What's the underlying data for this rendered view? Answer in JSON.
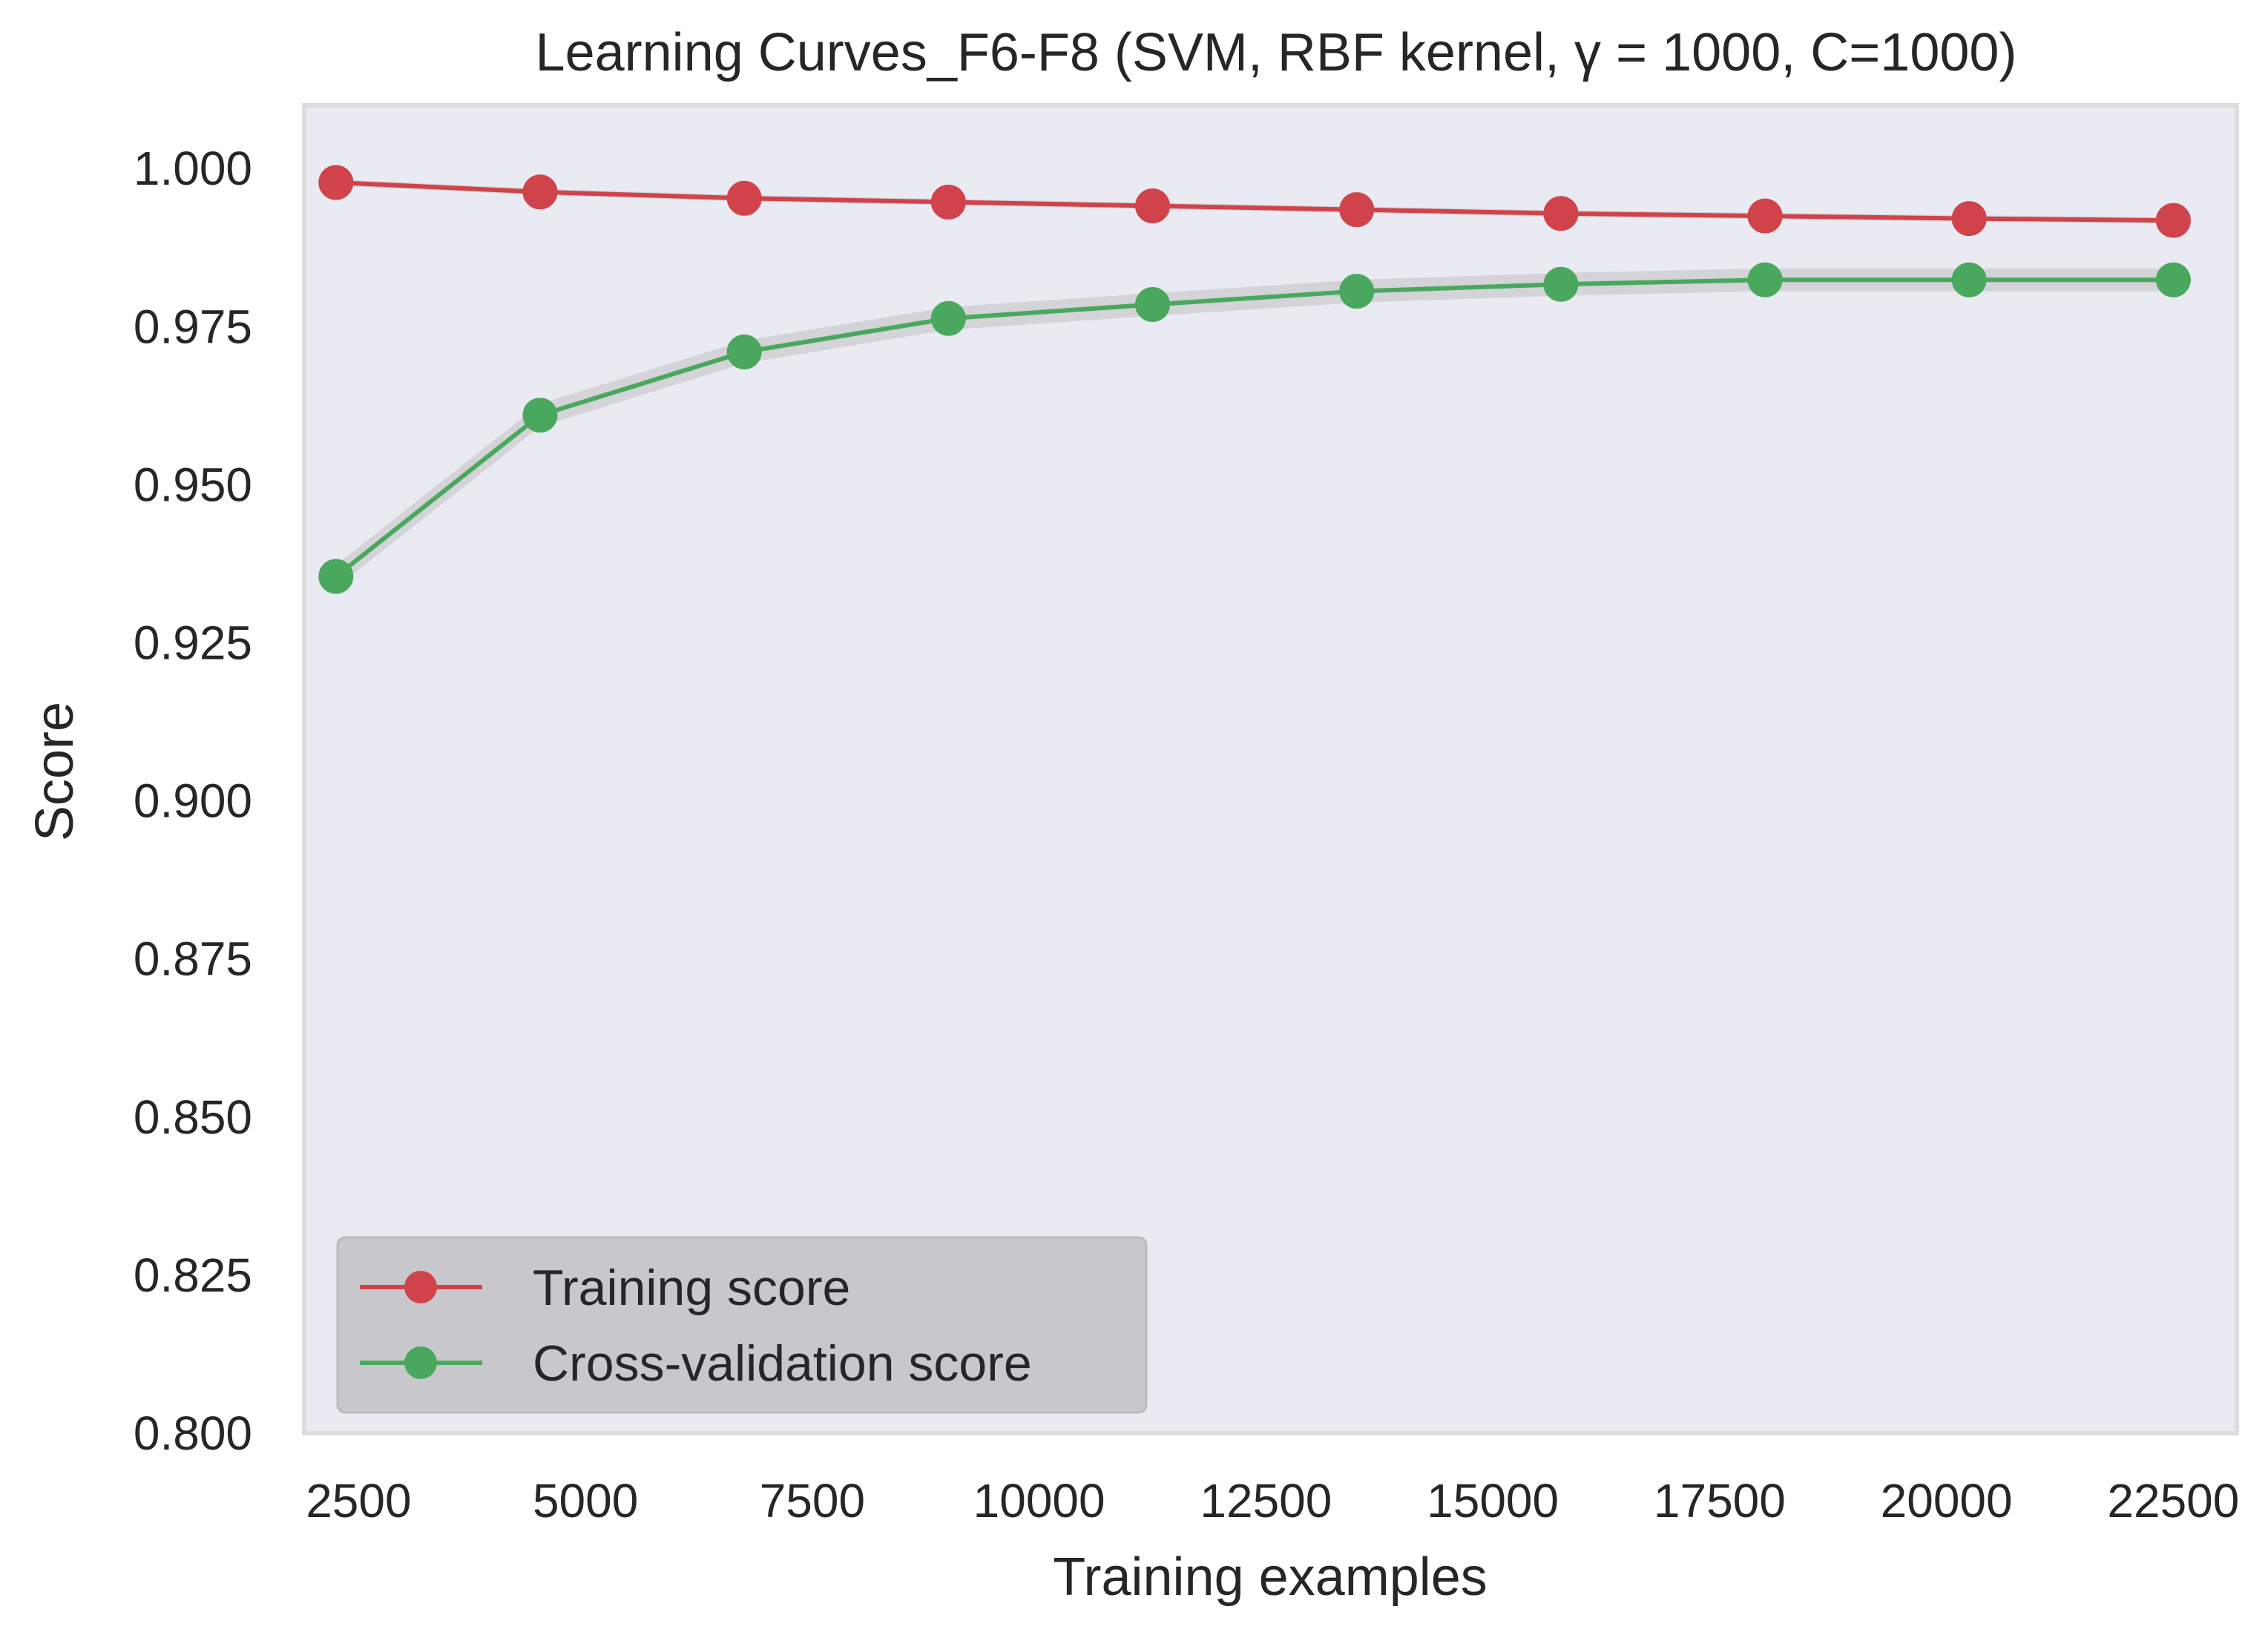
{
  "chart_data": {
    "type": "line",
    "title": "Learning Curves_F6-F8 (SVM, RBF kernel, γ = 1000, C=1000)",
    "xlabel": "Training examples",
    "ylabel": "Score",
    "xlim": [
      1900,
      23200
    ],
    "ylim": [
      0.8,
      1.01
    ],
    "xticks": [
      2500,
      5000,
      7500,
      10000,
      12500,
      15000,
      17500,
      20000,
      22500
    ],
    "xtick_labels": [
      "2500",
      "5000",
      "7500",
      "10000",
      "12500",
      "15000",
      "17500",
      "20000",
      "22500"
    ],
    "yticks": [
      0.8,
      0.825,
      0.85,
      0.875,
      0.9,
      0.925,
      0.95,
      0.975,
      1.0
    ],
    "ytick_labels": [
      "0.800",
      "0.825",
      "0.850",
      "0.875",
      "0.900",
      "0.925",
      "0.950",
      "0.975",
      "1.000"
    ],
    "grid": false,
    "legend_position": "lower-left",
    "x": [
      2250,
      4500,
      6750,
      9000,
      11250,
      13500,
      15750,
      18000,
      20250,
      22500
    ],
    "series": [
      {
        "name": "Training score",
        "color": "#d1434b",
        "values": [
          0.9978,
          0.9963,
          0.9953,
          0.9947,
          0.9941,
          0.9935,
          0.9929,
          0.9925,
          0.9921,
          0.9918
        ],
        "band": 0.0005
      },
      {
        "name": "Cross-validation score",
        "color": "#4aa85e",
        "values": [
          0.9355,
          0.961,
          0.971,
          0.9763,
          0.9785,
          0.9806,
          0.9817,
          0.9824,
          0.9824,
          0.9824
        ],
        "band": 0.0018
      }
    ]
  }
}
